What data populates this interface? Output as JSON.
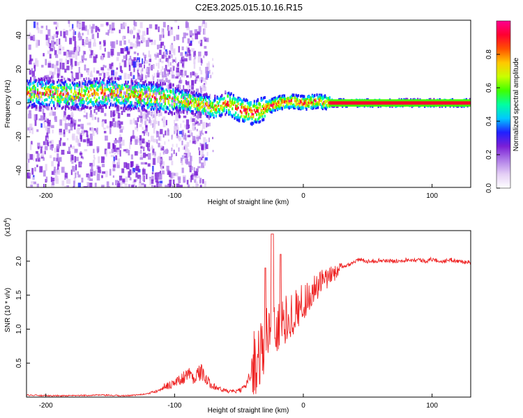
{
  "title": "C2E3.2025.015.10.16.R15",
  "chart_data": [
    {
      "type": "heatmap",
      "title": "C2E3.2025.015.10.16.R15",
      "xlabel": "Height of straight line (km)",
      "ylabel": "Frequency (Hz)",
      "xlim": [
        -215,
        130
      ],
      "ylim": [
        -50,
        49
      ],
      "xticks": [
        -200,
        -100,
        0,
        100
      ],
      "xtick_labels": [
        "-200",
        "-100",
        "0",
        "100"
      ],
      "yticks": [
        -40,
        -20,
        0,
        20,
        40
      ],
      "ytick_labels": [
        "-40",
        "-20",
        "0",
        "20",
        "40"
      ],
      "colorbar": {
        "label": "Normalized spectral amplitude",
        "range": [
          0,
          1
        ],
        "ticks": [
          0,
          0.2,
          0.4,
          0.6,
          0.8
        ],
        "tick_labels": [
          "0.0",
          "0.2",
          "0.4",
          "0.6",
          "0.8"
        ],
        "colors": [
          "#ffffff",
          "#e4cff5",
          "#b07de8",
          "#7b1fd6",
          "#2020ff",
          "#00c8ff",
          "#00ffa0",
          "#40ff00",
          "#c8ff00",
          "#ffc800",
          "#ff5000",
          "#ff0030",
          "#ff0090"
        ]
      },
      "ridge": {
        "description_points": [
          [
            -215,
            6
          ],
          [
            -180,
            5
          ],
          [
            -150,
            6
          ],
          [
            -125,
            4
          ],
          [
            -100,
            2
          ],
          [
            -85,
            0
          ],
          [
            -70,
            -3
          ],
          [
            -60,
            0
          ],
          [
            -50,
            -4
          ],
          [
            -40,
            -6
          ],
          [
            -30,
            -3
          ],
          [
            -20,
            0
          ],
          [
            -10,
            1
          ],
          [
            0,
            0
          ],
          [
            10,
            1
          ],
          [
            20,
            0
          ],
          [
            130,
            0
          ]
        ],
        "x": [
          -215,
          -180,
          -150,
          -125,
          -100,
          -85,
          -70,
          -60,
          -50,
          -40,
          -30,
          -20,
          -10,
          0,
          10,
          20,
          130
        ],
        "y": [
          6,
          5,
          6,
          4,
          2,
          0,
          -3,
          0,
          -4,
          -6,
          -3,
          0,
          1,
          0,
          1,
          0,
          0
        ]
      }
    },
    {
      "type": "line",
      "xlabel": "Height of straight line (km)",
      "ylabel": "SNR (10 * v/v)",
      "yscale_note": "(x10",
      "yscale_exp": "4",
      "xlim": [
        -215,
        130
      ],
      "ylim": [
        0,
        2.45
      ],
      "xticks": [
        -200,
        -100,
        0,
        100
      ],
      "xtick_labels": [
        "-200",
        "-100",
        "0",
        "100"
      ],
      "yticks": [
        0.5,
        1.0,
        1.5,
        2.0
      ],
      "ytick_labels": [
        "0.5",
        "1.0",
        "1.5",
        "2.0"
      ],
      "color": "#ee2222",
      "series": [
        {
          "name": "SNR",
          "x": [
            -215,
            -200,
            -180,
            -160,
            -140,
            -130,
            -120,
            -115,
            -110,
            -105,
            -100,
            -95,
            -90,
            -85,
            -80,
            -78,
            -75,
            -70,
            -65,
            -60,
            -55,
            -50,
            -45,
            -40,
            -35,
            -30,
            -25,
            -24,
            -22,
            -20,
            -15,
            -10,
            -5,
            0,
            5,
            10,
            15,
            20,
            25,
            30,
            35,
            40,
            45,
            50,
            60,
            70,
            80,
            90,
            95,
            100,
            105,
            110,
            115,
            120,
            130
          ],
          "y": [
            0.03,
            0.02,
            0.02,
            0.03,
            0.02,
            0.03,
            0.05,
            0.08,
            0.12,
            0.15,
            0.18,
            0.22,
            0.3,
            0.25,
            0.32,
            0.3,
            0.2,
            0.15,
            0.1,
            0.08,
            0.07,
            0.08,
            0.12,
            0.4,
            0.6,
            0.8,
            1.1,
            2.4,
            1.0,
            1.0,
            1.1,
            1.2,
            1.3,
            1.4,
            1.5,
            1.6,
            1.7,
            1.75,
            1.85,
            1.9,
            1.95,
            2.0,
            2.02,
            2.0,
            2.01,
            2.0,
            2.02,
            2.02,
            2.0,
            2.03,
            2.0,
            2.0,
            2.02,
            2.0,
            1.98
          ]
        }
      ]
    }
  ]
}
